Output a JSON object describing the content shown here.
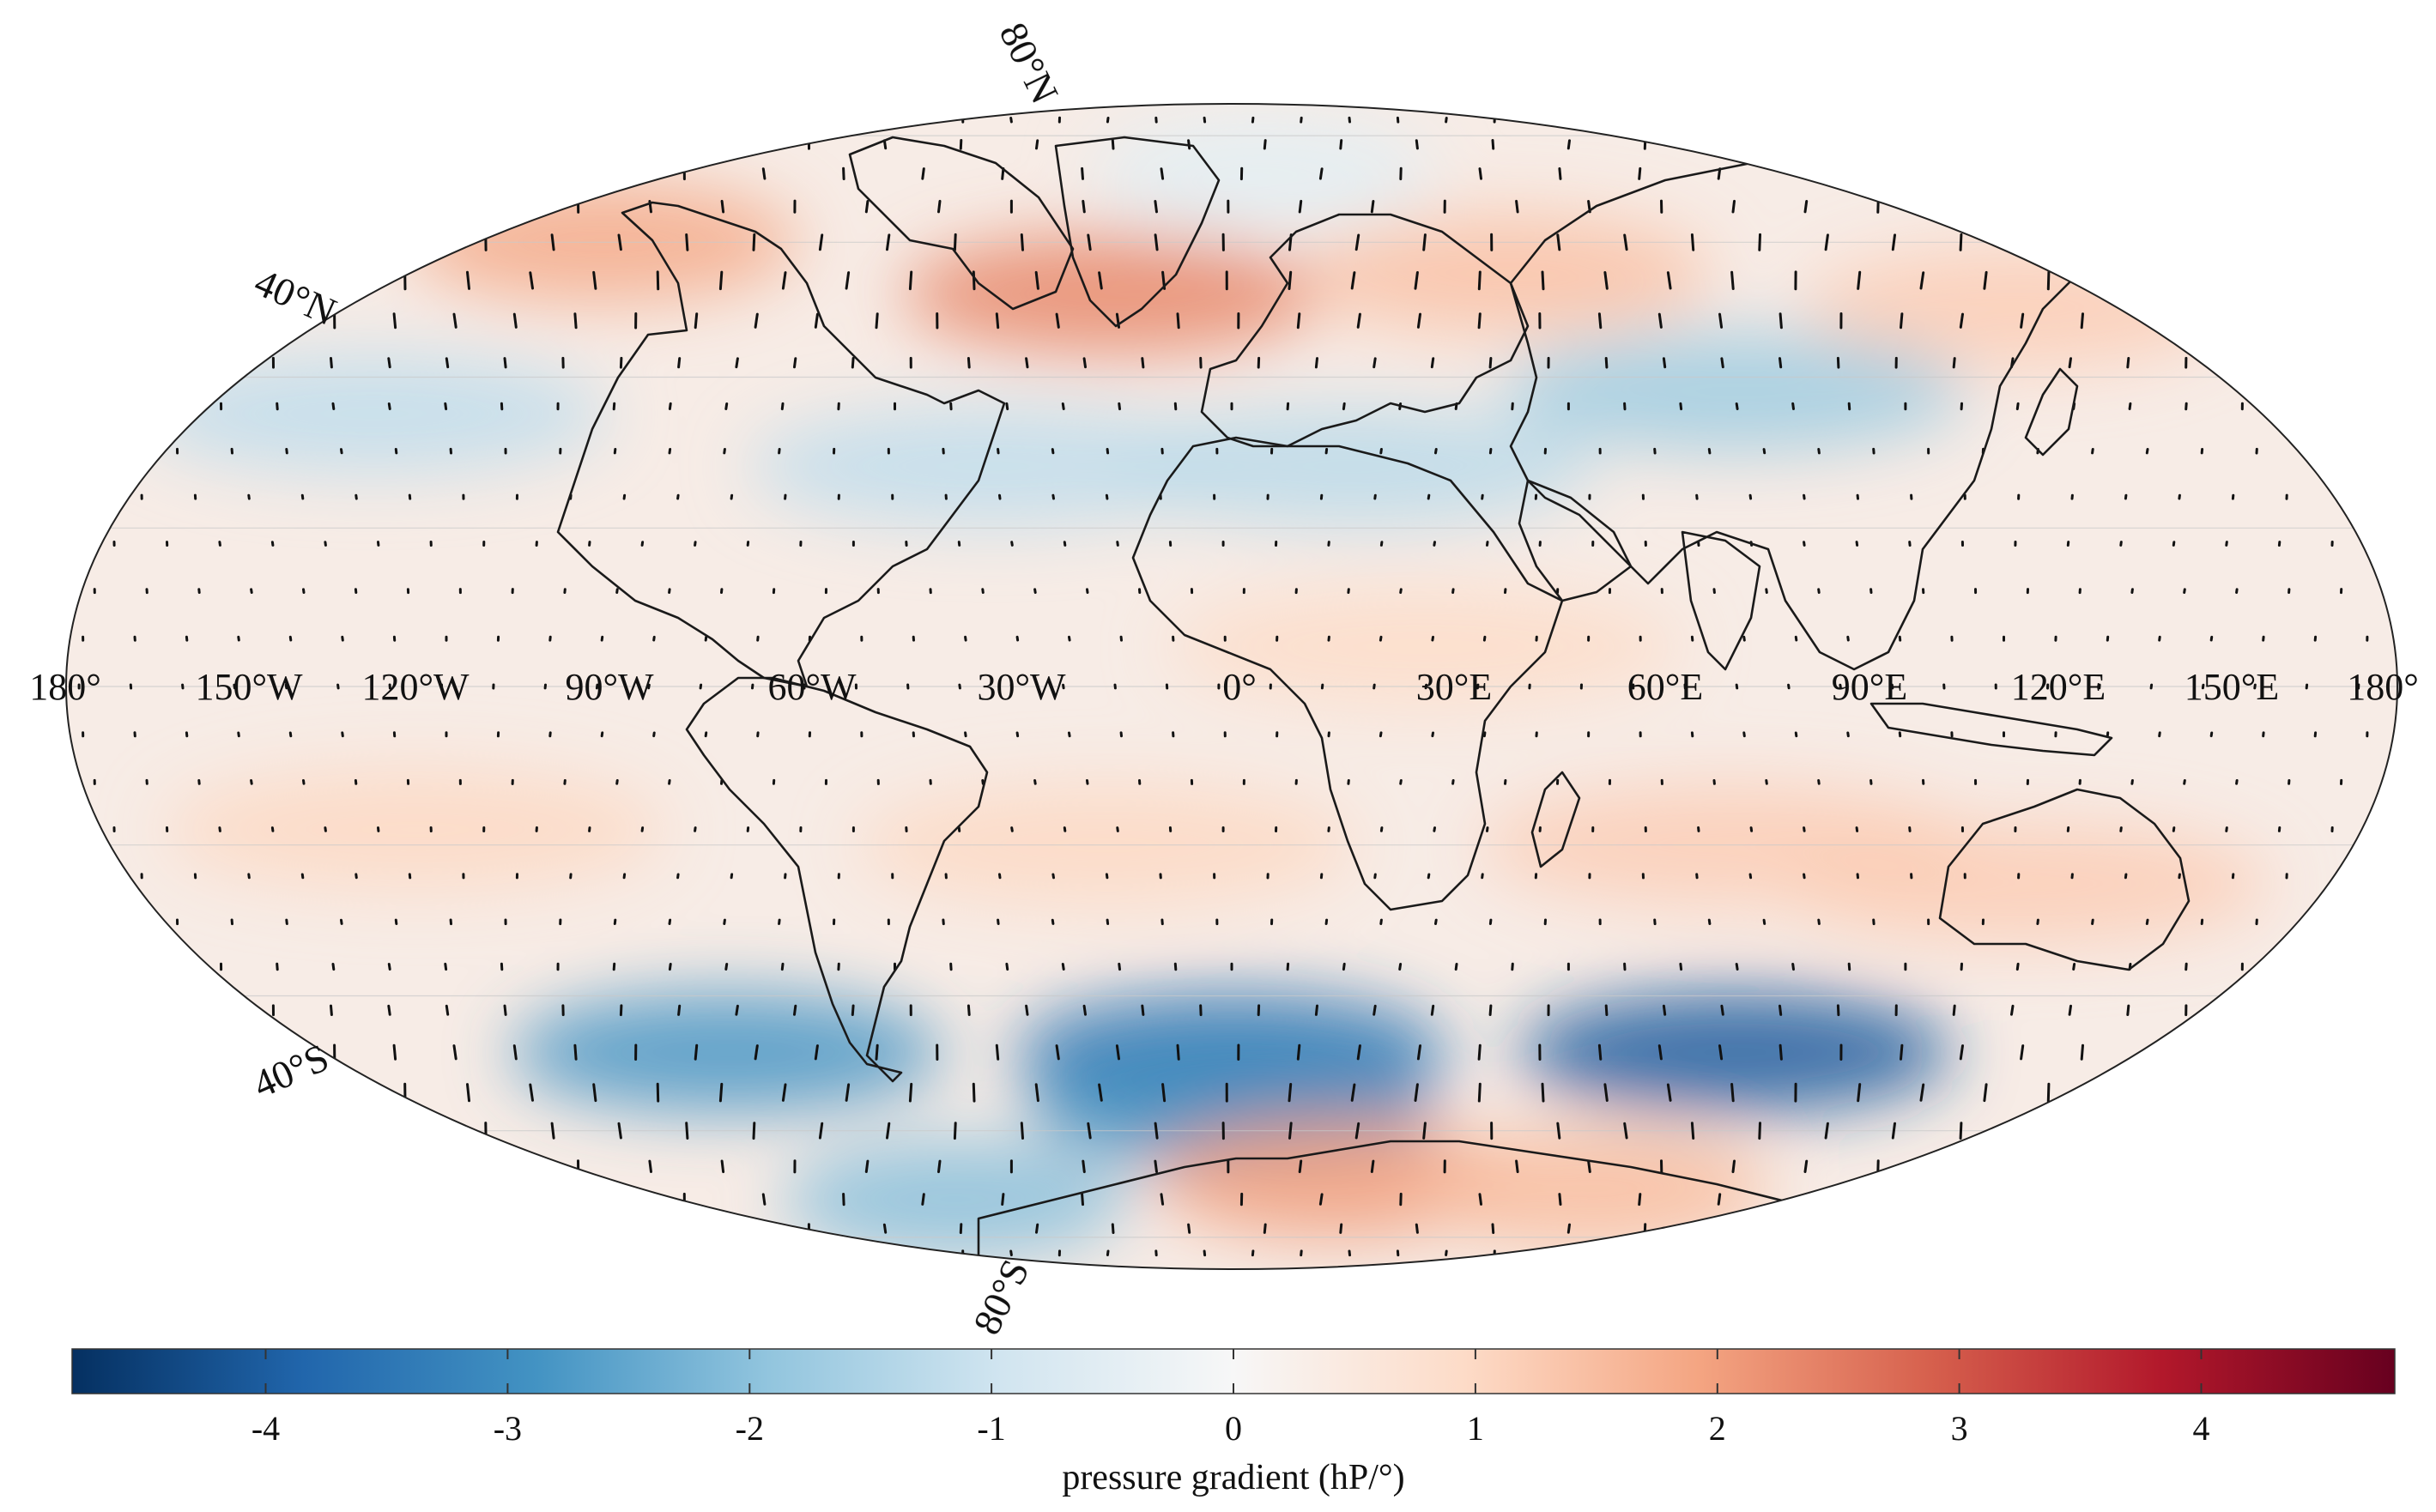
{
  "map": {
    "projection": "mollweide",
    "meridian_labels": [
      "180°",
      "150°W",
      "120°W",
      "90°W",
      "60°W",
      "30°W",
      "0°",
      "30°E",
      "60°E",
      "90°E",
      "120°E",
      "150°E",
      "180°"
    ],
    "parallel_labels": {
      "n80": "80°N",
      "n40": "40°N",
      "s40": "40°S",
      "s80": "80°S"
    },
    "field_bands": [
      {
        "lat": 72,
        "lon": 10,
        "value": -0.5
      },
      {
        "lat": 60,
        "lon": -150,
        "value": 1.8
      },
      {
        "lat": 52,
        "lon": -25,
        "value": 2.3
      },
      {
        "lat": 55,
        "lon": 60,
        "value": 1.4
      },
      {
        "lat": 50,
        "lon": 160,
        "value": 1.2
      },
      {
        "lat": 35,
        "lon": -150,
        "value": -1.2
      },
      {
        "lat": 28,
        "lon": -40,
        "value": -1.2
      },
      {
        "lat": 28,
        "lon": 20,
        "value": -1.3
      },
      {
        "lat": 38,
        "lon": 90,
        "value": -1.7
      },
      {
        "lat": 5,
        "lon": 30,
        "value": 0.9
      },
      {
        "lat": -18,
        "lon": -130,
        "value": 1.0
      },
      {
        "lat": -20,
        "lon": -20,
        "value": 1.0
      },
      {
        "lat": -20,
        "lon": 80,
        "value": 1.2
      },
      {
        "lat": -25,
        "lon": 130,
        "value": 1.2
      },
      {
        "lat": -48,
        "lon": -100,
        "value": -2.8
      },
      {
        "lat": -48,
        "lon": 0,
        "value": -3.5
      },
      {
        "lat": -48,
        "lon": 100,
        "value": -4.0
      },
      {
        "lat": -56,
        "lon": 0,
        "value": -3.0
      },
      {
        "lat": -68,
        "lon": 30,
        "value": 2.0
      },
      {
        "lat": -70,
        "lon": 110,
        "value": 1.5
      },
      {
        "lat": -72,
        "lon": -90,
        "value": -2.0
      }
    ]
  },
  "colorbar": {
    "ticks": [
      -4,
      -3,
      -2,
      -1,
      0,
      1,
      2,
      3,
      4
    ],
    "tick_labels": [
      "-4",
      "-3",
      "-2",
      "-1",
      "0",
      "1",
      "2",
      "3",
      "4"
    ],
    "label": "pressure gradient (hP/°)",
    "range": [
      -4.8,
      4.8
    ],
    "colors": [
      "#053061",
      "#2166ac",
      "#4393c3",
      "#92c5de",
      "#d1e5f0",
      "#f7f7f7",
      "#fddbc7",
      "#f4a582",
      "#d6604d",
      "#b2182b",
      "#67001f"
    ]
  }
}
